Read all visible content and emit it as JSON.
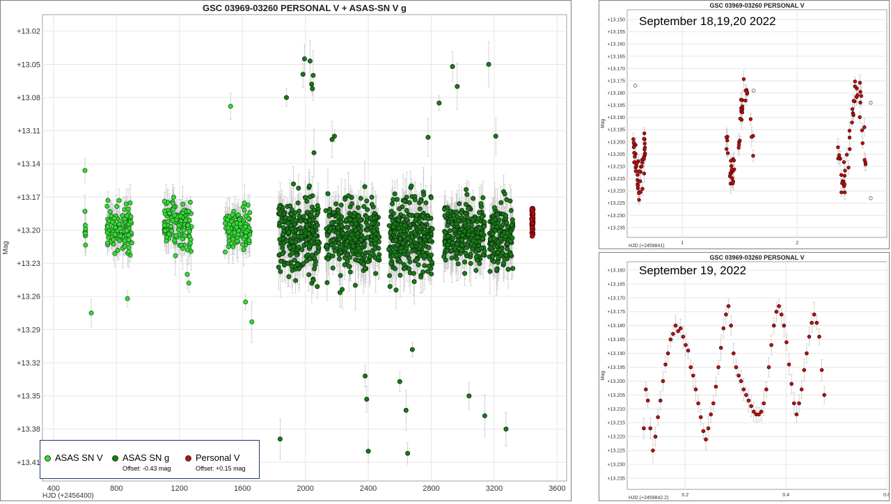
{
  "colors": {
    "asas_v": "#33dd33",
    "asas_g": "#1a7a1a",
    "personal_v": "#c01010",
    "error_bar": "#c8c8c8",
    "grid": "#e6e6e6"
  },
  "legend": {
    "items": [
      {
        "label": "ASAS SN V",
        "offset": ""
      },
      {
        "label": "ASAS SN g",
        "offset": "Offset: -0.43 mag"
      },
      {
        "label": "Personal V",
        "offset": "Offset: +0.15 mag"
      }
    ]
  },
  "chart_data": [
    {
      "type": "scatter",
      "title": "GSC 03969-03260 PERSONAL V + ASAS-SN V g",
      "xlabel": "HJD (+2456400)",
      "ylabel": "Mag",
      "xlim": [
        330,
        3660
      ],
      "ylim": [
        13.427,
        13.005
      ],
      "x_ticks": [
        "400",
        "800",
        "1200",
        "1600",
        "2000",
        "2400",
        "2800",
        "3200",
        "3600"
      ],
      "x_tick_values": [
        400,
        800,
        1200,
        1600,
        2000,
        2400,
        2800,
        3200,
        3600
      ],
      "y_ticks": [
        "+13.02",
        "+13.05",
        "+13.08",
        "+13.11",
        "+13.14",
        "+13.17",
        "+13.20",
        "+13.23",
        "+13.26",
        "+13.29",
        "+13.32",
        "+13.35",
        "+13.38",
        "+13.41"
      ],
      "y_tick_values": [
        13.02,
        13.05,
        13.08,
        13.11,
        13.14,
        13.17,
        13.2,
        13.23,
        13.26,
        13.29,
        13.32,
        13.35,
        13.38,
        13.41
      ],
      "grid": true,
      "series": [
        {
          "name": "ASAS SN V",
          "seasons": [
            [
              600,
              605,
              13.2,
              0.015,
              8
            ],
            [
              740,
              900,
              13.198,
              0.018,
              110
            ],
            [
              1100,
              1280,
              13.195,
              0.02,
              120
            ],
            [
              1490,
              1650,
              13.198,
              0.018,
              110
            ]
          ],
          "points": [
            [
              600,
              13.146
            ],
            [
              600,
              13.183
            ],
            [
              640,
              13.275
            ],
            [
              1660,
              13.283
            ],
            [
              1620,
              13.265
            ],
            [
              1525,
              13.088
            ],
            [
              870,
              13.262
            ],
            [
              1250,
              13.24
            ],
            [
              1260,
              13.248
            ]
          ]
        },
        {
          "name": "ASAS SN g",
          "seasons": [
            [
              1830,
              2090,
              13.205,
              0.035,
              250
            ],
            [
              2130,
              2470,
              13.205,
              0.032,
              320
            ],
            [
              2530,
              2810,
              13.205,
              0.035,
              300
            ],
            [
              2880,
              3140,
              13.205,
              0.03,
              250
            ],
            [
              3170,
              3320,
              13.205,
              0.028,
              160
            ]
          ],
          "points": [
            [
              1985,
              13.059
            ],
            [
              1995,
              13.045
            ],
            [
              2030,
              13.047
            ],
            [
              2040,
              13.068
            ],
            [
              2050,
              13.06
            ],
            [
              2045,
              13.072
            ],
            [
              1840,
              13.389
            ],
            [
              2400,
              13.4
            ],
            [
              2650,
              13.402
            ],
            [
              2680,
              13.308
            ],
            [
              2600,
              13.337
            ],
            [
              2640,
              13.363
            ],
            [
              2390,
              13.353
            ],
            [
              2380,
              13.332
            ],
            [
              2780,
              13.116
            ],
            [
              2850,
              13.085
            ],
            [
              2935,
              13.052
            ],
            [
              2965,
              13.07
            ],
            [
              3165,
              13.05
            ],
            [
              3210,
              13.115
            ],
            [
              3140,
              13.368
            ],
            [
              3275,
              13.38
            ],
            [
              3040,
              13.35
            ],
            [
              1880,
              13.08
            ],
            [
              2055,
              13.13
            ],
            [
              2170,
              13.118
            ],
            [
              2185,
              13.115
            ]
          ]
        },
        {
          "name": "Personal V",
          "seasons": [
            [
              3435,
              3450,
              13.193,
              0.013,
              120
            ]
          ],
          "points": []
        }
      ]
    },
    {
      "type": "scatter",
      "title": "GSC 03969-03260 PERSONAL V",
      "annotation": "September 18,19,20 2022",
      "xlabel": "HJD (+2459841)",
      "ylabel": "Mag",
      "xlim": [
        0.52,
        2.78
      ],
      "ylim": [
        13.239,
        13.146
      ],
      "x_ticks": [
        "1",
        "2"
      ],
      "x_tick_values": [
        1,
        2
      ],
      "y_ticks": [
        "+13.150",
        "+13.155",
        "+13.160",
        "+13.165",
        "+13.170",
        "+13.175",
        "+13.180",
        "+13.185",
        "+13.190",
        "+13.195",
        "+13.200",
        "+13.205",
        "+13.210",
        "+13.215",
        "+13.220",
        "+13.225",
        "+13.230",
        "+13.235"
      ],
      "y_tick_values": [
        13.15,
        13.155,
        13.16,
        13.165,
        13.17,
        13.175,
        13.18,
        13.185,
        13.19,
        13.195,
        13.2,
        13.205,
        13.21,
        13.215,
        13.22,
        13.225,
        13.23,
        13.235
      ],
      "grid": true,
      "series": [
        {
          "name": "",
          "nights": [
            [
              0.57,
              0.68
            ],
            [
              1.38,
              1.62
            ],
            [
              2.35,
              2.62
            ]
          ],
          "open_points": [
            [
              0.59,
              13.177
            ],
            [
              1.62,
              13.179
            ],
            [
              2.64,
              13.184
            ],
            [
              2.64,
              13.223
            ]
          ]
        }
      ]
    },
    {
      "type": "line",
      "title": "GSC 03969-03260 PERSONAL V",
      "annotation": "September 19, 2022",
      "xlabel": "HJD (+2459842.2)",
      "ylabel": "Mag",
      "xlim": [
        0.085,
        0.6
      ],
      "ylim": [
        13.239,
        13.157
      ],
      "x_ticks": [
        "0.2",
        "0.4",
        "0.6"
      ],
      "x_tick_values": [
        0.2,
        0.4,
        0.6
      ],
      "y_ticks": [
        "+13.160",
        "+13.165",
        "+13.170",
        "+13.175",
        "+13.180",
        "+13.185",
        "+13.190",
        "+13.195",
        "+13.200",
        "+13.205",
        "+13.210",
        "+13.215",
        "+13.220",
        "+13.225",
        "+13.230",
        "+13.235"
      ],
      "y_tick_values": [
        13.16,
        13.165,
        13.17,
        13.175,
        13.18,
        13.185,
        13.19,
        13.195,
        13.2,
        13.205,
        13.21,
        13.215,
        13.22,
        13.225,
        13.23,
        13.235
      ],
      "grid": true,
      "series": [
        {
          "name": "",
          "x": [
            0.118,
            0.122,
            0.126,
            0.131,
            0.136,
            0.141,
            0.146,
            0.151,
            0.156,
            0.161,
            0.166,
            0.171,
            0.176,
            0.181,
            0.186,
            0.191,
            0.196,
            0.201,
            0.206,
            0.211,
            0.216,
            0.221,
            0.226,
            0.231,
            0.236,
            0.241,
            0.246,
            0.251,
            0.256,
            0.261,
            0.266,
            0.271,
            0.276,
            0.281,
            0.286,
            0.291,
            0.296,
            0.301,
            0.306,
            0.311,
            0.316,
            0.321,
            0.326,
            0.331,
            0.336,
            0.341,
            0.346,
            0.351,
            0.356,
            0.361,
            0.366,
            0.371,
            0.376,
            0.381,
            0.386,
            0.391,
            0.396,
            0.401,
            0.406,
            0.411,
            0.416,
            0.421,
            0.426,
            0.431,
            0.436,
            0.441,
            0.446,
            0.451,
            0.456,
            0.461,
            0.466,
            0.471,
            0.476
          ],
          "y": [
            13.217,
            13.203,
            13.207,
            13.217,
            13.225,
            13.22,
            13.213,
            13.207,
            13.2,
            13.194,
            13.19,
            13.185,
            13.183,
            13.18,
            13.182,
            13.181,
            13.184,
            13.187,
            13.189,
            13.195,
            13.198,
            13.203,
            13.208,
            13.213,
            13.218,
            13.221,
            13.217,
            13.212,
            13.208,
            13.202,
            13.195,
            13.188,
            13.181,
            13.176,
            13.173,
            13.18,
            13.19,
            13.195,
            13.198,
            13.2,
            13.203,
            13.205,
            13.207,
            13.209,
            13.211,
            13.212,
            13.212,
            13.211,
            13.208,
            13.203,
            13.195,
            13.187,
            13.18,
            13.175,
            13.173,
            13.176,
            13.18,
            13.186,
            13.194,
            13.201,
            13.208,
            13.212,
            13.208,
            13.203,
            13.196,
            13.19,
            13.184,
            13.179,
            13.176,
            13.179,
            13.184,
            13.196,
            13.205
          ]
        }
      ]
    }
  ]
}
